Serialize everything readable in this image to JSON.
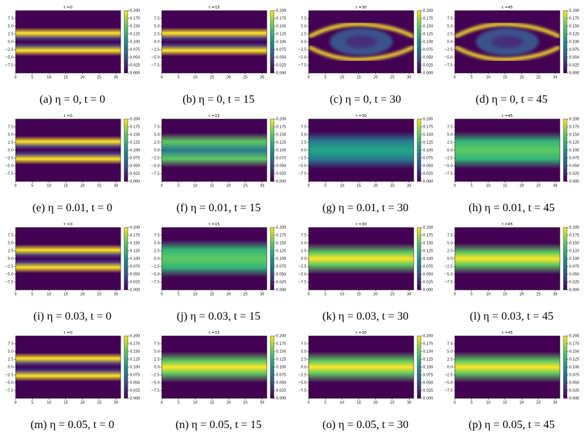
{
  "figure": {
    "x_ticks": [
      0,
      5,
      10,
      15,
      20,
      25,
      30
    ],
    "y_ticks": [
      {
        "value": 7.5,
        "label": "7.5"
      },
      {
        "value": 5,
        "label": "5.0"
      },
      {
        "value": 2.5,
        "label": "2.5"
      },
      {
        "value": 0,
        "label": "0.0"
      },
      {
        "value": -2.5,
        "label": "−2.5"
      },
      {
        "value": -5,
        "label": "−5.0"
      },
      {
        "value": -7.5,
        "label": "−7.5"
      }
    ],
    "colorbar_ticks": [
      {
        "value": 0.2,
        "label": "0.200"
      },
      {
        "value": 0.175,
        "label": "0.175"
      },
      {
        "value": 0.15,
        "label": "0.150"
      },
      {
        "value": 0.125,
        "label": "0.125"
      },
      {
        "value": 0.1,
        "label": "0.100"
      },
      {
        "value": 0.075,
        "label": "0.075"
      },
      {
        "value": 0.05,
        "label": "0.050"
      },
      {
        "value": 0.025,
        "label": "0.025"
      },
      {
        "value": 0,
        "label": "0.000"
      }
    ],
    "panels": [
      {
        "title": "t =0",
        "caption": "(a) η = 0, t = 0"
      },
      {
        "title": "t =15",
        "caption": "(b) η = 0, t = 15"
      },
      {
        "title": "t =30",
        "caption": "(c) η = 0, t = 30"
      },
      {
        "title": "t =45",
        "caption": "(d) η = 0, t = 45"
      },
      {
        "title": "t =0",
        "caption": "(e) η = 0.01, t = 0"
      },
      {
        "title": "t =15",
        "caption": "(f) η = 0.01, t = 15"
      },
      {
        "title": "t =30",
        "caption": "(g) η = 0.01, t = 30"
      },
      {
        "title": "t =45",
        "caption": "(h) η = 0.01, t = 45"
      },
      {
        "title": "t =0",
        "caption": "(i) η = 0.03, t = 0"
      },
      {
        "title": "t =15",
        "caption": "(j) η = 0.03, t = 15"
      },
      {
        "title": "t =30",
        "caption": "(k) η = 0.03, t = 30"
      },
      {
        "title": "t =45",
        "caption": "(l) η = 0.03, t = 45"
      },
      {
        "title": "t =0",
        "caption": "(m) η = 0.05, t = 0"
      },
      {
        "title": "t =15",
        "caption": "(n) η = 0.05, t = 15"
      },
      {
        "title": "t =30",
        "caption": "(o) η = 0.05, t = 30"
      },
      {
        "title": "t =45",
        "caption": "(p) η = 0.05, t = 45"
      }
    ]
  }
}
